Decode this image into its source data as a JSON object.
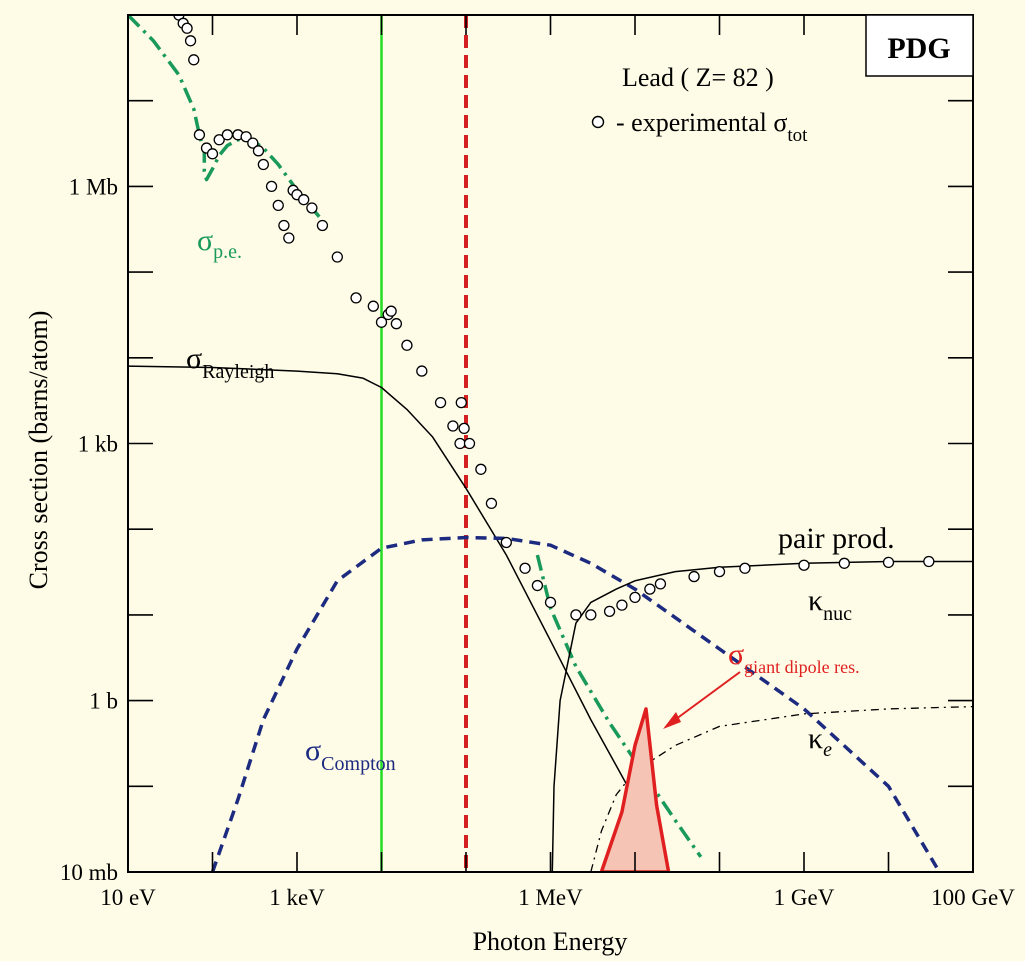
{
  "chart_data": {
    "type": "line",
    "title": "",
    "logo": "PDG",
    "subtitle": "Lead ( Z= 82 )",
    "legend": {
      "marker": "open-circle",
      "text": "- experimental σ",
      "sub": "tot"
    },
    "xlabel": "Photon Energy",
    "ylabel": "Cross section  (barns/atom)",
    "x_scale": "log",
    "y_scale": "log",
    "x_unit": "eV",
    "y_unit": "barn",
    "xlim": [
      10,
      100000000000
    ],
    "ylim": [
      0.01,
      100000000
    ],
    "x_ticks": [
      {
        "value": 10,
        "label": "10 eV"
      },
      {
        "value": 1000,
        "label": "1 keV"
      },
      {
        "value": 1000000,
        "label": "1 MeV"
      },
      {
        "value": 1000000000,
        "label": "1 GeV"
      },
      {
        "value": 100000000000,
        "label": "100 GeV"
      }
    ],
    "y_ticks": [
      {
        "value": 0.01,
        "label": "10 mb"
      },
      {
        "value": 1,
        "label": "1 b"
      },
      {
        "value": 1000,
        "label": "1 kb"
      },
      {
        "value": 1000000,
        "label": "1 Mb"
      }
    ],
    "grid": false,
    "colors": {
      "background": "#fefbe6",
      "photoelectric": "#1a9a5a",
      "compton": "#1c2a80",
      "giant_dipole": "#e02020",
      "giant_dipole_fill": "#f5c4b4",
      "marker_line_green": "#22dd22",
      "marker_line_red": "#d42020",
      "other": "#000000"
    },
    "vertical_markers": [
      {
        "x": 10000,
        "style": "solid",
        "color": "#22dd22"
      },
      {
        "x": 100000,
        "style": "dashed",
        "color": "#d42020"
      }
    ],
    "series": [
      {
        "name": "σ",
        "sub": "p.e.",
        "style": "dash-dot",
        "color": "#1a9a5a",
        "x": [
          10,
          20,
          40,
          60,
          70,
          80,
          80,
          85,
          100,
          120,
          150,
          200,
          250,
          300,
          400,
          600,
          1000,
          2000
        ],
        "y": [
          100000000,
          50000000,
          20000000,
          8000000,
          4000000,
          2500000,
          1500000,
          1200000,
          1600000,
          2300000,
          3000000,
          3500000,
          3600000,
          3400000,
          2800000,
          1800000,
          900000,
          400000
        ]
      },
      {
        "name": "σ",
        "sub": "p.e.",
        "style": "dash-dot",
        "color": "#1a9a5a",
        "x": [
          700000,
          1000000,
          2000000,
          5000000,
          10000000,
          30000000,
          60000000
        ],
        "y": [
          50,
          12,
          2.5,
          0.55,
          0.2,
          0.04,
          0.015
        ]
      },
      {
        "name": "σ",
        "sub": "Rayleigh",
        "style": "solid",
        "color": "#000000",
        "x": [
          10,
          100,
          1000,
          3000,
          6000,
          10000,
          20000,
          40000,
          100000,
          300000,
          1000000,
          3000000,
          10000000,
          14000000
        ],
        "y": [
          8000,
          7700,
          7000,
          6500,
          5800,
          4500,
          2500,
          1200,
          300,
          50,
          5,
          0.6,
          0.07,
          0.025
        ]
      },
      {
        "name": "σ",
        "sub": "Compton",
        "style": "dashed",
        "color": "#1c2a80",
        "x": [
          100,
          200,
          400,
          1000,
          3000,
          10000,
          30000,
          100000,
          300000,
          1000000,
          3000000,
          10000000,
          100000000,
          1000000000,
          10000000000,
          40000000000
        ],
        "y": [
          0.01,
          0.07,
          0.6,
          4,
          25,
          60,
          75,
          80,
          78,
          65,
          40,
          20,
          4,
          0.8,
          0.1,
          0.01
        ]
      },
      {
        "name": "κ",
        "sub": "nuc",
        "style": "solid",
        "color": "#000000",
        "x": [
          1050000,
          1100000,
          1300000,
          2000000,
          3000000,
          6000000,
          10000000,
          30000000,
          100000000,
          1000000000,
          10000000000,
          100000000000
        ],
        "y": [
          0.01,
          0.1,
          1,
          8,
          14,
          20,
          25,
          32,
          36,
          40,
          42,
          42
        ]
      },
      {
        "name": "κ",
        "sub": "e",
        "style": "dash-dot",
        "color": "#000000",
        "x": [
          3000000,
          4000000,
          6000000,
          10000000,
          30000000,
          100000000,
          1000000000,
          10000000000,
          100000000000
        ],
        "y": [
          0.01,
          0.03,
          0.08,
          0.15,
          0.3,
          0.5,
          0.7,
          0.8,
          0.85
        ]
      },
      {
        "name": "σ",
        "sub": "giant dipole res.",
        "style": "solid-filled",
        "color": "#e02020",
        "x": [
          4000000,
          7000000,
          10000000,
          13500000,
          18000000,
          25000000
        ],
        "y": [
          0.01,
          0.05,
          0.3,
          0.8,
          0.06,
          0.01
        ]
      },
      {
        "name": "experimental σtot",
        "style": "markers",
        "color": "#000000",
        "x": [
          40,
          45,
          50,
          55,
          60,
          70,
          85,
          100,
          120,
          150,
          200,
          250,
          300,
          350,
          400,
          500,
          600,
          700,
          800,
          900,
          1000,
          1200,
          1500,
          2000,
          3000,
          5000,
          8000,
          10000,
          12000,
          13000,
          15000,
          20000,
          30000,
          50000,
          70000,
          85000,
          88000,
          95000,
          110000,
          150000,
          200000,
          300000,
          500000,
          700000,
          1000000,
          2000000,
          3000000,
          5000000,
          7000000,
          10000000,
          15000000,
          20000000,
          50000000,
          100000000,
          200000000,
          1000000000,
          3000000000,
          10000000000,
          30000000000
        ],
        "y": [
          100000000,
          80000000,
          70000000,
          50000000,
          30000000,
          4000000,
          2800000,
          2400000,
          3500000,
          4000000,
          4000000,
          3800000,
          3200000,
          2600000,
          1800000,
          1000000,
          600000,
          350000,
          250000,
          900000,
          800000,
          700000,
          560000,
          350000,
          150000,
          50000,
          40000,
          26000,
          32000,
          35000,
          25000,
          14000,
          7000,
          3000,
          1600,
          1000,
          3000,
          1500,
          1000,
          500,
          200,
          70,
          35,
          22,
          14,
          10,
          10,
          11,
          13,
          16,
          20,
          23,
          28,
          32,
          35,
          38,
          40,
          41,
          42
        ]
      }
    ],
    "annotations": [
      {
        "text": "pair prod."
      }
    ]
  }
}
